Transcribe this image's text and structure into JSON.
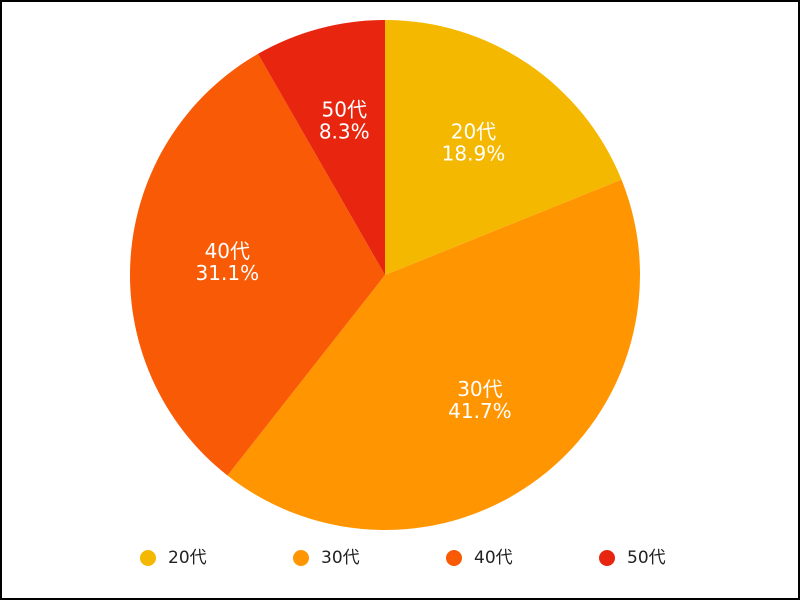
{
  "chart_data": {
    "type": "pie",
    "categories": [
      "20代",
      "30代",
      "40代",
      "50代"
    ],
    "values": [
      18.9,
      41.7,
      31.1,
      8.3
    ],
    "value_labels": [
      "18.9%",
      "41.7%",
      "31.1%",
      "8.3%"
    ],
    "colors": [
      "#f5b800",
      "#ff9500",
      "#f85a06",
      "#e8260f"
    ],
    "legend": "bottom"
  }
}
